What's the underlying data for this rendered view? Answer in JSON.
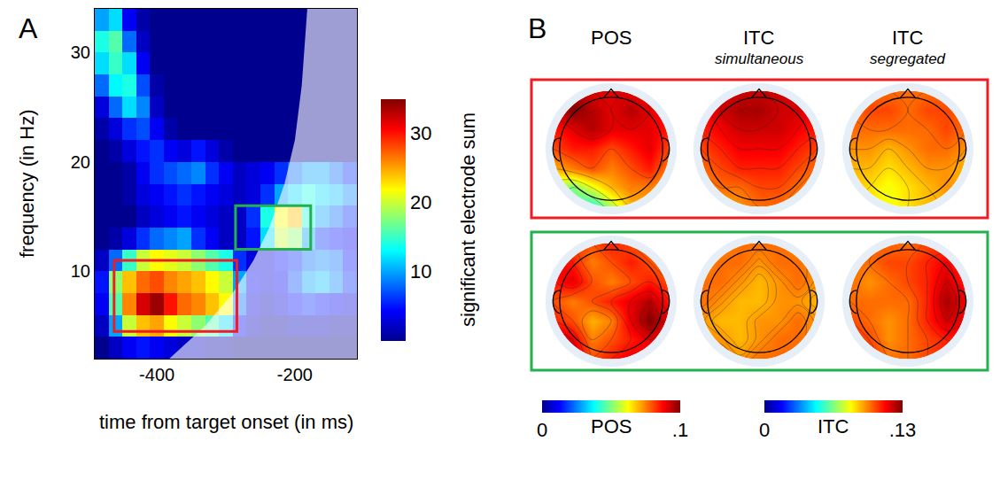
{
  "chart_data": [
    {
      "panel": "A",
      "type": "heatmap",
      "x_label": "time from target onset (in ms)",
      "y_label": "frequency (in Hz)",
      "x": [
        -480,
        -460,
        -440,
        -420,
        -400,
        -380,
        -360,
        -340,
        -320,
        -300,
        -280,
        -260,
        -240,
        -220,
        -200,
        -180,
        -160,
        -140,
        -120
      ],
      "y": [
        3,
        5,
        7,
        9,
        11,
        13,
        15,
        17,
        19,
        21,
        23,
        25,
        27,
        29,
        31,
        33
      ],
      "cells": [
        [
          0,
          2,
          4,
          5,
          4,
          3,
          2,
          2,
          1,
          1,
          0,
          0,
          0,
          0,
          0,
          0,
          0,
          0,
          0
        ],
        [
          2,
          10,
          20,
          24,
          25,
          22,
          20,
          18,
          16,
          12,
          4,
          2,
          1,
          1,
          2,
          2,
          2,
          1,
          1
        ],
        [
          4,
          16,
          26,
          32,
          34,
          30,
          27,
          26,
          24,
          22,
          8,
          3,
          2,
          3,
          5,
          6,
          5,
          4,
          3
        ],
        [
          5,
          18,
          24,
          27,
          28,
          26,
          25,
          24,
          22,
          20,
          10,
          4,
          3,
          4,
          7,
          10,
          11,
          9,
          6
        ],
        [
          2,
          8,
          15,
          20,
          22,
          21,
          20,
          18,
          16,
          14,
          6,
          3,
          3,
          5,
          6,
          8,
          9,
          8,
          5
        ],
        [
          0,
          1,
          3,
          6,
          8,
          9,
          10,
          6,
          4,
          2,
          2,
          5,
          12,
          20,
          18,
          10,
          6,
          5,
          4
        ],
        [
          0,
          0,
          0,
          2,
          3,
          4,
          5,
          4,
          3,
          2,
          2,
          6,
          14,
          22,
          24,
          14,
          10,
          8,
          6
        ],
        [
          0,
          0,
          1,
          3,
          4,
          5,
          6,
          5,
          4,
          3,
          2,
          3,
          6,
          10,
          12,
          14,
          12,
          11,
          9
        ],
        [
          0,
          0,
          1,
          4,
          6,
          7,
          8,
          9,
          6,
          4,
          2,
          3,
          4,
          6,
          8,
          10,
          10,
          8,
          6
        ],
        [
          0,
          1,
          3,
          5,
          6,
          4,
          3,
          5,
          3,
          1,
          0,
          0,
          0,
          0,
          0,
          0,
          0,
          0,
          0
        ],
        [
          1,
          3,
          6,
          7,
          4,
          1,
          0,
          0,
          0,
          0,
          0,
          0,
          0,
          0,
          0,
          0,
          0,
          0,
          0
        ],
        [
          3,
          8,
          12,
          9,
          2,
          0,
          0,
          0,
          0,
          0,
          0,
          0,
          0,
          0,
          0,
          0,
          0,
          0,
          0
        ],
        [
          8,
          13,
          14,
          7,
          1,
          0,
          0,
          0,
          0,
          0,
          0,
          0,
          0,
          0,
          0,
          0,
          0,
          0,
          0
        ],
        [
          12,
          15,
          12,
          4,
          0,
          0,
          0,
          0,
          0,
          0,
          0,
          0,
          0,
          0,
          0,
          0,
          0,
          0,
          0
        ],
        [
          14,
          16,
          8,
          2,
          0,
          0,
          0,
          0,
          0,
          0,
          0,
          0,
          0,
          0,
          0,
          0,
          0,
          0,
          0
        ],
        [
          10,
          12,
          4,
          1,
          0,
          0,
          0,
          0,
          0,
          0,
          0,
          0,
          0,
          0,
          0,
          0,
          0,
          0,
          0
        ]
      ],
      "xlim": [
        -490,
        -110
      ],
      "xticks": [
        -400,
        -200
      ],
      "ylim": [
        2,
        34
      ],
      "yticks": [
        10,
        20,
        30
      ],
      "colorbar": {
        "title": "significant electrode sum",
        "range": [
          0,
          35
        ],
        "ticks": [
          10,
          20,
          30
        ]
      },
      "cone_of_influence": {
        "x": [
          -382,
          -330,
          -290,
          -260,
          -237,
          -215,
          -200,
          -190,
          -182
        ],
        "y": [
          2,
          5,
          8,
          11,
          14,
          18,
          22,
          27,
          34
        ]
      },
      "boxes": [
        {
          "color": "#ee1c25",
          "x": [
            -462,
            -284
          ],
          "y": [
            4.5,
            11
          ]
        },
        {
          "color": "#22b14c",
          "x": [
            -286,
            -177
          ],
          "y": [
            12,
            16
          ]
        }
      ]
    },
    {
      "panel": "B",
      "type": "topomap",
      "columns": [
        {
          "title": "POS",
          "scale": "POS"
        },
        {
          "title": "ITC",
          "subtitle": "simultaneous",
          "scale": "ITC"
        },
        {
          "title": "ITC",
          "subtitle": "segregated",
          "scale": "ITC"
        }
      ],
      "rows": [
        {
          "color": "#ee1c25",
          "maps": [
            [
              [
                0.05,
                0.045,
                0.04,
                0.055,
                0.07,
                0.07,
                0.06
              ],
              [
                0.055,
                0.05,
                0.06,
                0.07,
                0.075,
                0.075,
                0.07
              ],
              [
                0.07,
                0.075,
                0.08,
                0.075,
                0.08,
                0.085,
                0.075
              ],
              [
                0.08,
                0.085,
                0.085,
                0.08,
                0.085,
                0.09,
                0.08
              ],
              [
                0.085,
                0.09,
                0.095,
                0.09,
                0.09,
                0.09,
                0.085
              ],
              [
                0.09,
                0.1,
                0.095,
                0.09,
                0.095,
                0.09,
                0.085
              ],
              [
                0.085,
                0.095,
                0.09,
                0.09,
                0.09,
                0.085,
                0.08
              ]
            ],
            [
              [
                0.09,
                0.09,
                0.095,
                0.1,
                0.1,
                0.095,
                0.09
              ],
              [
                0.095,
                0.1,
                0.1,
                0.105,
                0.105,
                0.1,
                0.095
              ],
              [
                0.1,
                0.105,
                0.11,
                0.11,
                0.11,
                0.105,
                0.1
              ],
              [
                0.105,
                0.11,
                0.115,
                0.115,
                0.115,
                0.11,
                0.105
              ],
              [
                0.11,
                0.115,
                0.12,
                0.12,
                0.12,
                0.115,
                0.11
              ],
              [
                0.11,
                0.12,
                0.125,
                0.125,
                0.12,
                0.12,
                0.11
              ],
              [
                0.11,
                0.115,
                0.12,
                0.12,
                0.12,
                0.115,
                0.11
              ]
            ],
            [
              [
                0.085,
                0.085,
                0.08,
                0.085,
                0.09,
                0.09,
                0.085
              ],
              [
                0.09,
                0.085,
                0.08,
                0.085,
                0.09,
                0.095,
                0.09
              ],
              [
                0.09,
                0.09,
                0.085,
                0.09,
                0.095,
                0.095,
                0.09
              ],
              [
                0.095,
                0.095,
                0.09,
                0.095,
                0.1,
                0.1,
                0.095
              ],
              [
                0.1,
                0.1,
                0.1,
                0.1,
                0.1,
                0.105,
                0.1
              ],
              [
                0.1,
                0.105,
                0.105,
                0.1,
                0.105,
                0.105,
                0.1
              ],
              [
                0.1,
                0.1,
                0.1,
                0.1,
                0.1,
                0.1,
                0.095
              ]
            ]
          ]
        },
        {
          "color": "#22b14c",
          "maps": [
            [
              [
                0.1,
                0.095,
                0.08,
                0.085,
                0.09,
                0.085,
                0.08
              ],
              [
                0.095,
                0.09,
                0.075,
                0.08,
                0.085,
                0.09,
                0.085
              ],
              [
                0.085,
                0.08,
                0.07,
                0.075,
                0.09,
                0.1,
                0.09
              ],
              [
                0.08,
                0.075,
                0.08,
                0.085,
                0.09,
                0.095,
                0.085
              ],
              [
                0.085,
                0.09,
                0.08,
                0.075,
                0.08,
                0.085,
                0.08
              ],
              [
                0.09,
                0.085,
                0.075,
                0.08,
                0.085,
                0.08,
                0.075
              ],
              [
                0.085,
                0.08,
                0.08,
                0.085,
                0.08,
                0.075,
                0.075
              ]
            ],
            [
              [
                0.1,
                0.1,
                0.095,
                0.1,
                0.1,
                0.1,
                0.095
              ],
              [
                0.095,
                0.095,
                0.09,
                0.095,
                0.1,
                0.1,
                0.095
              ],
              [
                0.095,
                0.09,
                0.09,
                0.095,
                0.095,
                0.1,
                0.095
              ],
              [
                0.1,
                0.095,
                0.09,
                0.09,
                0.095,
                0.095,
                0.09
              ],
              [
                0.1,
                0.1,
                0.095,
                0.09,
                0.095,
                0.1,
                0.095
              ],
              [
                0.095,
                0.1,
                0.1,
                0.095,
                0.1,
                0.1,
                0.095
              ],
              [
                0.09,
                0.095,
                0.1,
                0.1,
                0.1,
                0.095,
                0.09
              ]
            ],
            [
              [
                0.115,
                0.11,
                0.1,
                0.1,
                0.105,
                0.11,
                0.105
              ],
              [
                0.11,
                0.105,
                0.095,
                0.1,
                0.105,
                0.11,
                0.11
              ],
              [
                0.105,
                0.1,
                0.095,
                0.1,
                0.11,
                0.12,
                0.115
              ],
              [
                0.1,
                0.1,
                0.1,
                0.1,
                0.11,
                0.125,
                0.115
              ],
              [
                0.1,
                0.095,
                0.1,
                0.105,
                0.11,
                0.12,
                0.11
              ],
              [
                0.1,
                0.1,
                0.105,
                0.105,
                0.11,
                0.115,
                0.105
              ],
              [
                0.095,
                0.1,
                0.1,
                0.1,
                0.105,
                0.105,
                0.1
              ]
            ]
          ]
        }
      ],
      "colorbars": [
        {
          "label": "POS",
          "range": [
            0,
            0.1
          ],
          "ticks": [
            0,
            {
              "value": 0.1,
              "label": ".1"
            }
          ]
        },
        {
          "label": "ITC",
          "range": [
            0,
            0.13
          ],
          "ticks": [
            0,
            {
              "value": 0.13,
              "label": ".13"
            }
          ]
        }
      ]
    }
  ]
}
